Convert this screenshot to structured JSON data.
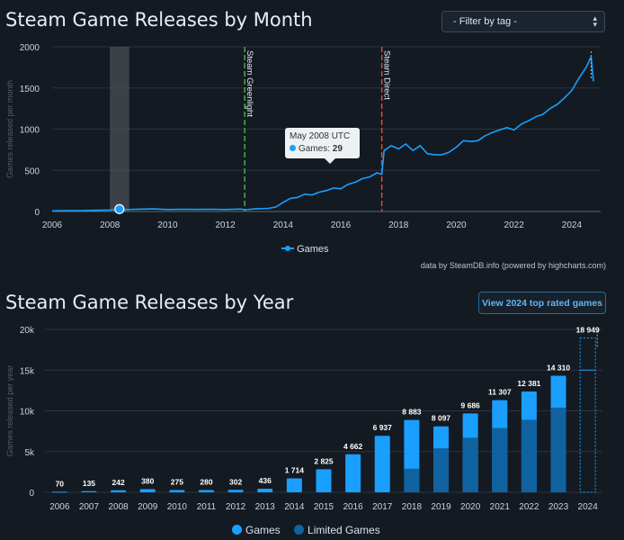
{
  "header": {
    "title_month": "Steam Game Releases by Month",
    "title_year": "Steam Game Releases by Year",
    "filter_label": "- Filter by tag -",
    "view_button": "View 2024 top rated games",
    "credit": "data by SteamDB.info (powered by highcharts.com)"
  },
  "tooltip": {
    "date": "May 2008 UTC",
    "series": "Games",
    "value": "29"
  },
  "legend": {
    "month_series": "Games",
    "year_games": "Games",
    "year_limited": "Limited Games"
  },
  "colors": {
    "games": "#1a9fff",
    "limited": "#1062a0",
    "greenlight": "#3fae4a",
    "direct": "#d94a2f"
  },
  "chart_data": [
    {
      "type": "line",
      "title": "Steam Game Releases by Month",
      "ylabel": "Games released per month",
      "ylim": [
        0,
        2000
      ],
      "yticks": [
        0,
        500,
        1000,
        1500,
        2000
      ],
      "xticks": [
        "2006",
        "2008",
        "2010",
        "2012",
        "2014",
        "2016",
        "2018",
        "2020",
        "2022",
        "2024"
      ],
      "plot_bands": [
        {
          "from": 2008.0,
          "to": 2008.67
        }
      ],
      "plot_lines": [
        {
          "x": 2012.67,
          "label": "Steam Greenlight"
        },
        {
          "x": 2017.42,
          "label": "Steam Direct"
        }
      ],
      "highlight": {
        "x": 2008.33,
        "y": 29
      },
      "series": [
        {
          "name": "Games",
          "points": [
            [
              2006.0,
              8
            ],
            [
              2006.5,
              10
            ],
            [
              2007.0,
              11
            ],
            [
              2007.5,
              14
            ],
            [
              2008.0,
              18
            ],
            [
              2008.33,
              29
            ],
            [
              2008.5,
              22
            ],
            [
              2009.0,
              28
            ],
            [
              2009.5,
              32
            ],
            [
              2010.0,
              24
            ],
            [
              2010.5,
              26
            ],
            [
              2011.0,
              25
            ],
            [
              2011.5,
              27
            ],
            [
              2012.0,
              24
            ],
            [
              2012.5,
              30
            ],
            [
              2012.75,
              22
            ],
            [
              2013.0,
              32
            ],
            [
              2013.5,
              38
            ],
            [
              2013.75,
              55
            ],
            [
              2014.0,
              110
            ],
            [
              2014.25,
              160
            ],
            [
              2014.5,
              170
            ],
            [
              2014.75,
              210
            ],
            [
              2015.0,
              200
            ],
            [
              2015.25,
              235
            ],
            [
              2015.5,
              255
            ],
            [
              2015.75,
              285
            ],
            [
              2016.0,
              275
            ],
            [
              2016.25,
              330
            ],
            [
              2016.5,
              355
            ],
            [
              2016.75,
              400
            ],
            [
              2017.0,
              420
            ],
            [
              2017.25,
              470
            ],
            [
              2017.42,
              450
            ],
            [
              2017.5,
              740
            ],
            [
              2017.75,
              800
            ],
            [
              2018.0,
              760
            ],
            [
              2018.25,
              820
            ],
            [
              2018.5,
              740
            ],
            [
              2018.75,
              800
            ],
            [
              2019.0,
              700
            ],
            [
              2019.25,
              690
            ],
            [
              2019.5,
              690
            ],
            [
              2019.75,
              720
            ],
            [
              2020.0,
              780
            ],
            [
              2020.25,
              860
            ],
            [
              2020.5,
              850
            ],
            [
              2020.75,
              860
            ],
            [
              2021.0,
              920
            ],
            [
              2021.25,
              960
            ],
            [
              2021.5,
              990
            ],
            [
              2021.75,
              1020
            ],
            [
              2022.0,
              990
            ],
            [
              2022.25,
              1060
            ],
            [
              2022.5,
              1100
            ],
            [
              2022.75,
              1150
            ],
            [
              2023.0,
              1180
            ],
            [
              2023.25,
              1250
            ],
            [
              2023.5,
              1300
            ],
            [
              2023.75,
              1380
            ],
            [
              2024.0,
              1470
            ],
            [
              2024.25,
              1620
            ],
            [
              2024.5,
              1750
            ],
            [
              2024.67,
              1880
            ],
            [
              2024.75,
              1580
            ]
          ]
        }
      ]
    },
    {
      "type": "bar",
      "title": "Steam Game Releases by Year",
      "ylabel": "Games released per year",
      "ylim": [
        0,
        20000
      ],
      "yticks": [
        "0",
        "5k",
        "10k",
        "15k",
        "20k"
      ],
      "categories": [
        "2006",
        "2007",
        "2008",
        "2009",
        "2010",
        "2011",
        "2012",
        "2013",
        "2014",
        "2015",
        "2016",
        "2017",
        "2018",
        "2019",
        "2020",
        "2021",
        "2022",
        "2023",
        "2024"
      ],
      "series": [
        {
          "name": "Games",
          "values": [
            70,
            135,
            242,
            380,
            275,
            280,
            302,
            436,
            1714,
            2825,
            4662,
            6937,
            8883,
            8097,
            9686,
            11307,
            12381,
            14310,
            18949
          ]
        },
        {
          "name": "Limited Games",
          "values": [
            0,
            0,
            0,
            0,
            0,
            0,
            0,
            0,
            0,
            0,
            0,
            0,
            2900,
            5400,
            6700,
            7900,
            8900,
            10400,
            0
          ]
        }
      ],
      "labels": [
        "70",
        "135",
        "242",
        "380",
        "275",
        "280",
        "302",
        "436",
        "1 714",
        "2 825",
        "4 662",
        "6 937",
        "8 883",
        "8 097",
        "9 686",
        "11 307",
        "12 381",
        "14 310",
        "18 949"
      ],
      "projected_category": "2024"
    }
  ]
}
